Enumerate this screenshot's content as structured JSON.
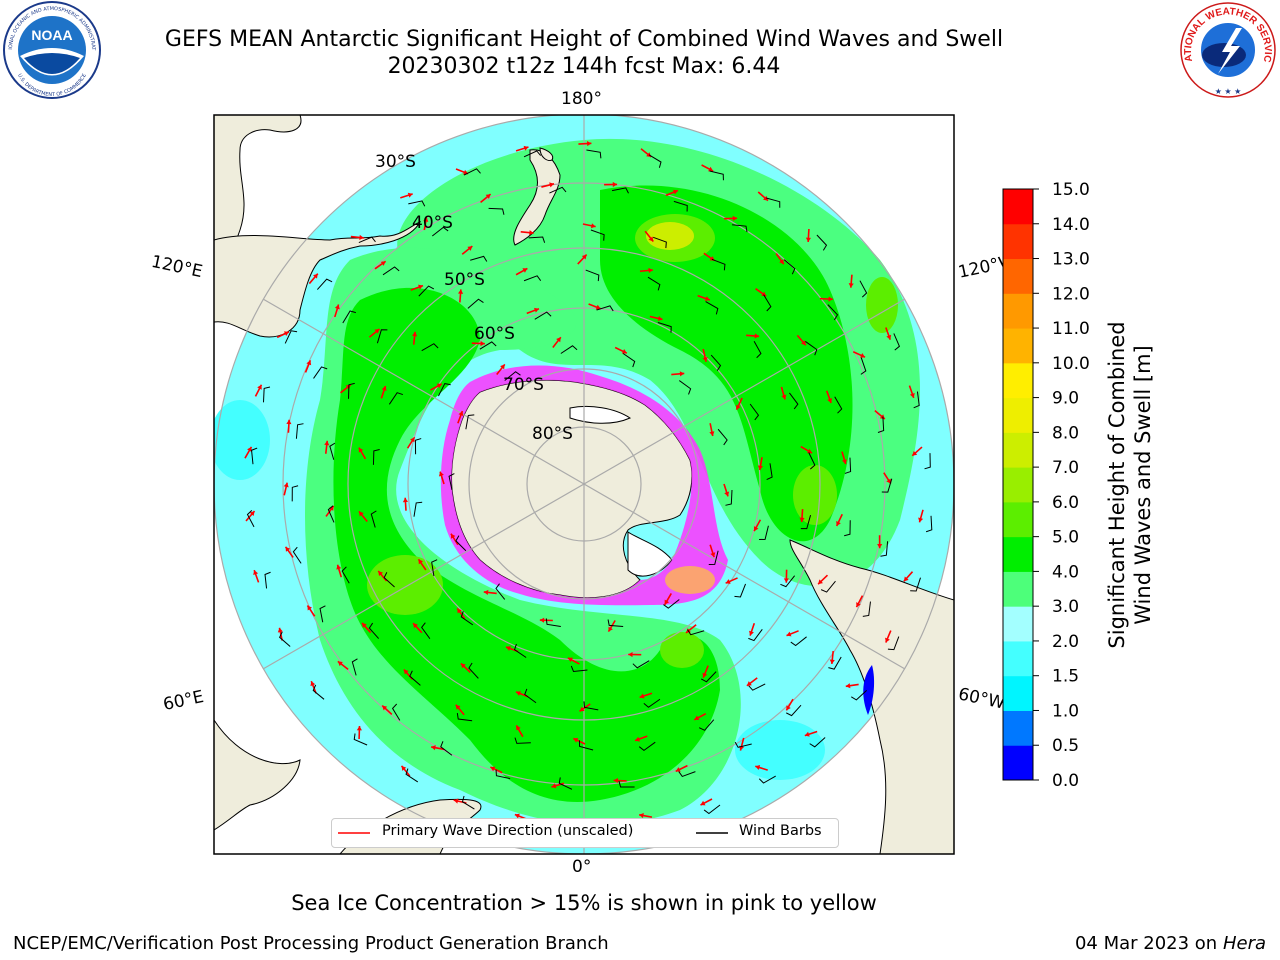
{
  "header": {
    "title_line1": "GEFS MEAN Antarctic Significant Height of Combined Wind Waves and Swell",
    "title_line2": "20230302 t12z 144h fcst   Max: 6.44"
  },
  "logos": {
    "noaa": {
      "text": "NOAA",
      "ring_text": "NATIONAL OCEANIC AND ATMOSPHERIC ADMINISTRATION",
      "bottom_text": "U.S. DEPARTMENT OF COMMERCE"
    },
    "nws": {
      "ring_text": "NATIONAL WEATHER SERVICE"
    }
  },
  "map": {
    "longitude_labels": {
      "top": "180°",
      "upper_left": "120°E",
      "upper_right": "120°W",
      "lower_left": "60°E",
      "lower_right": "60°W",
      "bottom": "0°"
    },
    "latitude_labels": [
      "30°S",
      "40°S",
      "50°S",
      "60°S",
      "70°S",
      "80°S"
    ],
    "colors": {
      "land": "#efeddc",
      "ocean_low": "#80ffff",
      "ocean_mid": "#4bff80",
      "ocean_high": "#00ef00",
      "ice": "#ff33ff",
      "arrows": "#ff0000",
      "barbs": "#000000"
    }
  },
  "legend": {
    "primary_wave_label": "Primary Wave Direction (unscaled)",
    "wind_barbs_label": "Wind Barbs"
  },
  "colorbar": {
    "label_line1": "Significant Height of Combined",
    "label_line2": "Wind Waves and Swell [m]",
    "ticks": [
      "0.0",
      "0.5",
      "1.0",
      "1.5",
      "2.0",
      "3.0",
      "4.0",
      "5.0",
      "6.0",
      "7.0",
      "8.0",
      "9.0",
      "10.0",
      "11.0",
      "12.0",
      "13.0",
      "14.0",
      "15.0"
    ],
    "colors": [
      "#0000ff",
      "#0078ff",
      "#00f5ff",
      "#44ffff",
      "#a3ffff",
      "#4dff7a",
      "#00ee00",
      "#5cee00",
      "#99ee00",
      "#ccee00",
      "#eeee00",
      "#ffee00",
      "#ffb300",
      "#ff9900",
      "#ff6600",
      "#ff3300",
      "#ff0000"
    ]
  },
  "caption": "Sea Ice Concentration > 15% is shown in pink to yellow",
  "footer": {
    "left": "NCEP/EMC/Verification Post Processing Product Generation Branch",
    "right_date": "04 Mar 2023 on",
    "right_host": "Hera"
  }
}
